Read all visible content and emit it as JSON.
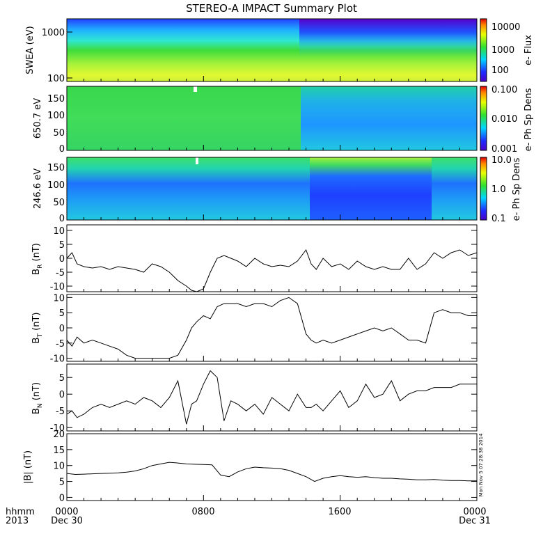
{
  "title": "STEREO-A IMPACT Summary Plot",
  "footer": {
    "hhmm": "hhmm",
    "year": "2013",
    "start_time": "0000",
    "start_date": "Dec 30",
    "mid1": "0800",
    "mid2": "1600",
    "end_time": "0000",
    "end_date": "Dec 31"
  },
  "timestamp": "Mon Nov  5 07:28:38 2014",
  "chart_data": [
    {
      "type": "heatmap",
      "ylabel": "SWEA (eV)",
      "yticks": [
        "1000",
        "100"
      ],
      "colorbar": {
        "label": "e- Flux",
        "ticks": [
          "10000",
          "1000",
          "100"
        ]
      }
    },
    {
      "type": "heatmap",
      "ylabel": "650.7 eV",
      "yticks": [
        "150",
        "100",
        "50",
        "0"
      ],
      "colorbar": {
        "label": "e- Ph Sp Dens",
        "ticks": [
          "0.100",
          "0.010",
          "0.001"
        ]
      }
    },
    {
      "type": "heatmap",
      "ylabel": "246.6 eV",
      "yticks": [
        "150",
        "100",
        "50",
        "0"
      ],
      "colorbar": {
        "label": "e- Ph Sp Dens",
        "ticks": [
          "10.0",
          "1.0",
          "0.1"
        ]
      }
    },
    {
      "type": "line",
      "ylabel": "B",
      "subscript": "R",
      "unit": "(nT)",
      "ylim": [
        -12,
        12
      ],
      "yticks": [
        "10",
        "5",
        "0",
        "-5",
        "-10"
      ],
      "x_hours": [
        0,
        0.3,
        0.6,
        1,
        1.5,
        2,
        2.5,
        3,
        3.5,
        4,
        4.5,
        5,
        5.5,
        6,
        6.5,
        7,
        7.3,
        7.6,
        8,
        8.4,
        8.8,
        9.2,
        9.6,
        10,
        10.5,
        11,
        11.5,
        12,
        12.5,
        13,
        13.5,
        14,
        14.3,
        14.6,
        15,
        15.5,
        16,
        16.5,
        17,
        17.5,
        18,
        18.5,
        19,
        19.5,
        20,
        20.5,
        21,
        21.5,
        22,
        22.5,
        23,
        23.5,
        24
      ],
      "values": [
        0,
        2,
        -2,
        -3,
        -3.5,
        -3,
        -4,
        -3,
        -3.5,
        -4,
        -5,
        -2,
        -3,
        -5,
        -8,
        -10,
        -11.5,
        -12,
        -11,
        -5,
        0,
        1,
        0,
        -1,
        -3,
        0,
        -2,
        -3,
        -2.5,
        -3,
        -1,
        3,
        -2,
        -4,
        0,
        -3,
        -2,
        -4,
        -1,
        -3,
        -4,
        -3,
        -4,
        -4,
        0,
        -4,
        -2,
        2,
        0,
        2,
        3,
        1,
        2
      ]
    },
    {
      "type": "line",
      "ylabel": "B",
      "subscript": "T",
      "unit": "(nT)",
      "ylim": [
        -11,
        11
      ],
      "yticks": [
        "10",
        "5",
        "0",
        "-5",
        "-10"
      ],
      "x_hours": [
        0,
        0.3,
        0.6,
        1,
        1.5,
        2,
        2.5,
        3,
        3.5,
        4,
        4.5,
        5,
        5.5,
        6,
        6.5,
        7,
        7.3,
        7.6,
        8,
        8.4,
        8.8,
        9.2,
        9.6,
        10,
        10.5,
        11,
        11.5,
        12,
        12.5,
        13,
        13.5,
        14,
        14.3,
        14.6,
        15,
        15.5,
        16,
        16.5,
        17,
        17.5,
        18,
        18.5,
        19,
        19.5,
        20,
        20.5,
        21,
        21.5,
        22,
        22.5,
        23,
        23.5,
        24
      ],
      "values": [
        -4,
        -6,
        -3,
        -5,
        -4,
        -5,
        -6,
        -7,
        -9,
        -10,
        -10,
        -10,
        -10,
        -10,
        -9,
        -4,
        0,
        2,
        4,
        3,
        7,
        8,
        8,
        8,
        7,
        8,
        8,
        7,
        9,
        10,
        8,
        -2,
        -4,
        -5,
        -4,
        -5,
        -4,
        -3,
        -2,
        -1,
        0,
        -1,
        0,
        -2,
        -4,
        -4,
        -5,
        5,
        6,
        5,
        5,
        4,
        4
      ]
    },
    {
      "type": "line",
      "ylabel": "B",
      "subscript": "N",
      "unit": "(nT)",
      "ylim": [
        -11,
        9
      ],
      "yticks": [
        "5",
        "0",
        "-5",
        "-10"
      ],
      "x_hours": [
        0,
        0.3,
        0.6,
        1,
        1.5,
        2,
        2.5,
        3,
        3.5,
        4,
        4.5,
        5,
        5.5,
        6,
        6.5,
        7,
        7.3,
        7.6,
        8,
        8.4,
        8.8,
        9.2,
        9.6,
        10,
        10.5,
        11,
        11.5,
        12,
        12.5,
        13,
        13.5,
        14,
        14.3,
        14.6,
        15,
        15.5,
        16,
        16.5,
        17,
        17.5,
        18,
        18.5,
        19,
        19.5,
        20,
        20.5,
        21,
        21.5,
        22,
        22.5,
        23,
        23.5,
        24
      ],
      "values": [
        -6,
        -5,
        -7,
        -6,
        -4,
        -3,
        -4,
        -3,
        -2,
        -3,
        -1,
        -2,
        -4,
        -1,
        4,
        -9,
        -3,
        -2,
        3,
        7,
        5,
        -8,
        -2,
        -3,
        -5,
        -3,
        -6,
        -1,
        -3,
        -5,
        0,
        -4,
        -4,
        -3,
        -5,
        -2,
        1,
        -4,
        -2,
        3,
        -1,
        0,
        4,
        -2,
        0,
        1,
        1,
        2,
        2,
        2,
        3,
        3,
        3
      ]
    },
    {
      "type": "line",
      "ylabel": "|B| (nT)",
      "ylim": [
        -1,
        20
      ],
      "yticks": [
        "20",
        "15",
        "10",
        "5",
        "0"
      ],
      "x_hours": [
        0,
        0.5,
        1,
        1.5,
        2,
        2.5,
        3,
        3.5,
        4,
        4.5,
        5,
        5.5,
        6,
        6.5,
        7,
        7.5,
        8,
        8.5,
        9,
        9.5,
        10,
        10.5,
        11,
        11.5,
        12,
        12.5,
        13,
        13.5,
        14,
        14.5,
        15,
        15.5,
        16,
        16.5,
        17,
        17.5,
        18,
        18.5,
        19,
        19.5,
        20,
        20.5,
        21,
        21.5,
        22,
        22.5,
        23,
        23.5,
        24
      ],
      "values": [
        7.5,
        7.2,
        7.3,
        7.4,
        7.5,
        7.6,
        7.7,
        7.9,
        8.3,
        9,
        10,
        10.5,
        11,
        10.8,
        10.5,
        10.4,
        10.3,
        10.2,
        7,
        6.5,
        8,
        9,
        9.5,
        9.3,
        9.2,
        9,
        8.5,
        7.5,
        6.5,
        5,
        6,
        6.5,
        6.8,
        6.5,
        6.3,
        6.5,
        6.2,
        6,
        6,
        5.8,
        5.7,
        5.5,
        5.5,
        5.6,
        5.4,
        5.3,
        5.3,
        5.2,
        5.2
      ]
    }
  ]
}
